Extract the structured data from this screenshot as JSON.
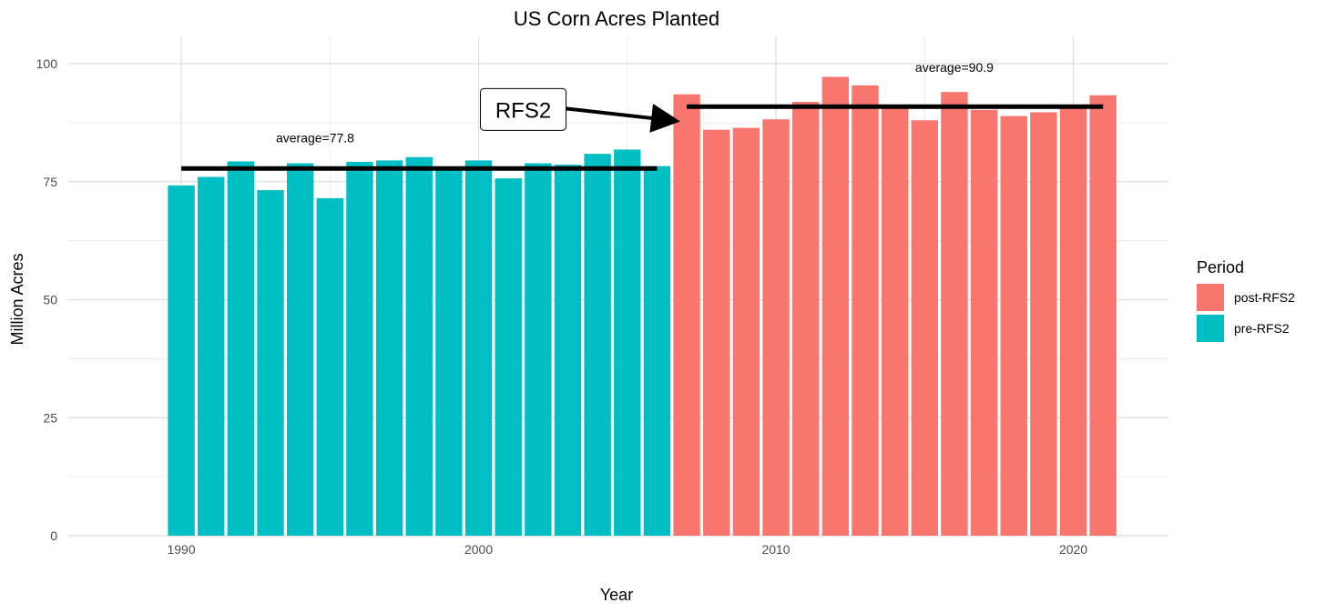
{
  "chart_data": {
    "type": "bar",
    "title": "US Corn Acres Planted",
    "xlabel": "Year",
    "ylabel": "Million Acres",
    "xlim": [
      1986.2,
      2023.2
    ],
    "ylim": [
      0,
      100
    ],
    "xticks": [
      1990,
      2000,
      2010,
      2020
    ],
    "yticks": [
      0,
      25,
      50,
      75,
      100
    ],
    "grid": true,
    "legend_position": "right",
    "legend_title": "Period",
    "series": [
      {
        "name": "pre-RFS2",
        "color": "#00BFC4",
        "x": [
          1990,
          1991,
          1992,
          1993,
          1994,
          1995,
          1996,
          1997,
          1998,
          1999,
          2000,
          2001,
          2002,
          2003,
          2004,
          2005,
          2006
        ],
        "values": [
          74.2,
          76.0,
          79.3,
          73.2,
          78.9,
          71.5,
          79.2,
          79.5,
          80.2,
          77.4,
          79.5,
          75.7,
          78.9,
          78.6,
          80.9,
          81.8,
          78.3
        ]
      },
      {
        "name": "post-RFS2",
        "color": "#F8766D",
        "x": [
          2007,
          2008,
          2009,
          2010,
          2011,
          2012,
          2013,
          2014,
          2015,
          2016,
          2017,
          2018,
          2019,
          2020,
          2021
        ],
        "values": [
          93.5,
          86.0,
          86.4,
          88.2,
          91.9,
          97.2,
          95.4,
          90.6,
          88.0,
          94.0,
          90.2,
          88.9,
          89.7,
          90.8,
          93.3
        ]
      }
    ],
    "annotations": [
      {
        "type": "hline",
        "y": 77.8,
        "x_start": 1990,
        "x_end": 2006,
        "label": "average=77.8",
        "label_x": 1994.5,
        "label_y": 83.3
      },
      {
        "type": "hline",
        "y": 90.9,
        "x_start": 2007,
        "x_end": 2021,
        "label": "average=90.9",
        "label_x": 2016,
        "label_y": 98.3
      },
      {
        "type": "callout",
        "label": "RFS2",
        "x": 2001.5,
        "y": 90.3,
        "arrow_to": {
          "x": 2006.6,
          "y": 87.9
        }
      }
    ]
  }
}
